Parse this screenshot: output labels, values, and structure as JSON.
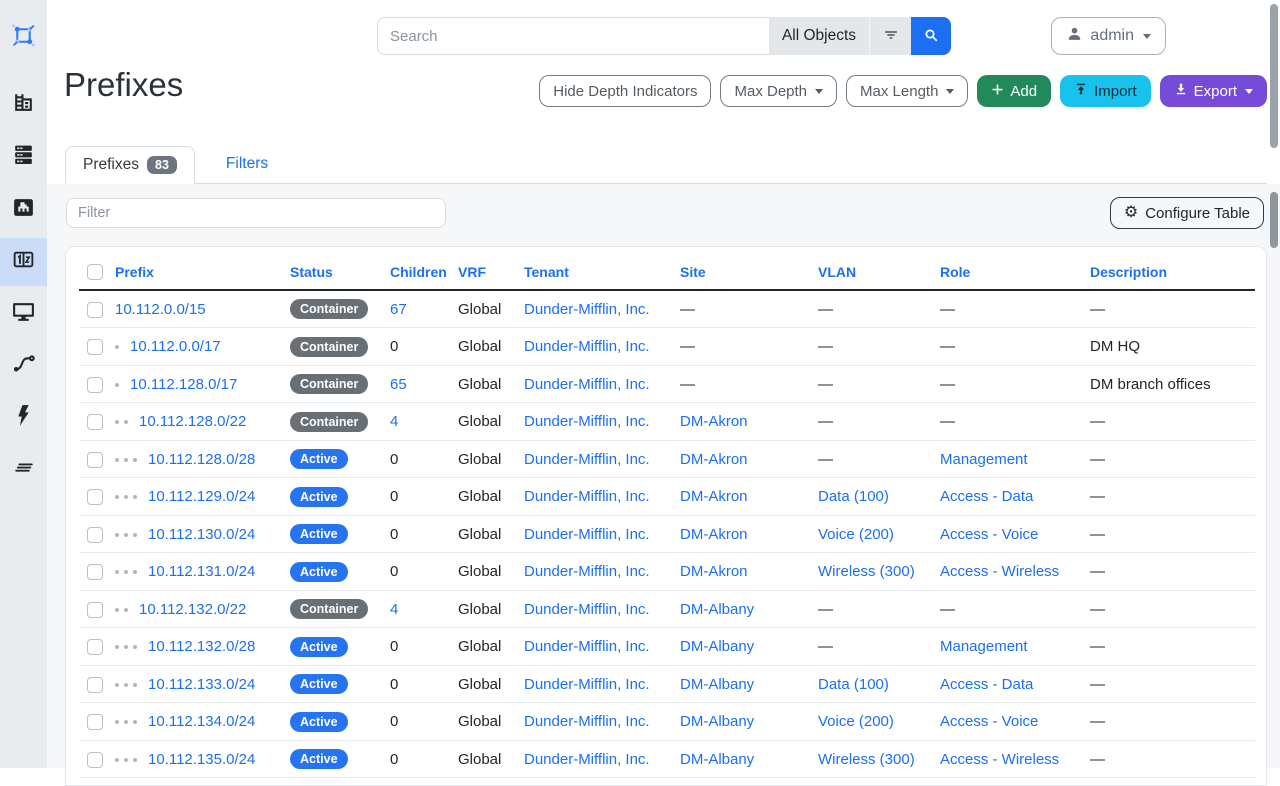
{
  "topbar": {
    "search_placeholder": "Search",
    "scope_button": "All Objects"
  },
  "account": {
    "username": "admin"
  },
  "page": {
    "title": "Prefixes"
  },
  "toolbar": {
    "hide_depth_label": "Hide Depth Indicators",
    "max_depth_label": "Max Depth",
    "max_length_label": "Max Length",
    "add_label": "Add",
    "import_label": "Import",
    "export_label": "Export"
  },
  "tabs": {
    "prefixes_label": "Prefixes",
    "prefixes_count": "83",
    "filters_label": "Filters"
  },
  "table_controls": {
    "filter_placeholder": "Filter",
    "configure_label": "Configure Table"
  },
  "sidebar": {
    "items": [
      {
        "name": "netbox-logo-icon"
      },
      {
        "name": "organization-icon"
      },
      {
        "name": "devices-icon"
      },
      {
        "name": "connections-icon"
      },
      {
        "name": "ipam-icon",
        "active": true
      },
      {
        "name": "virtualization-icon"
      },
      {
        "name": "circuits-icon"
      },
      {
        "name": "power-icon"
      },
      {
        "name": "customization-icon"
      }
    ]
  },
  "colors": {
    "link_blue": "#1b6ff2",
    "badge_active": "#2674f0",
    "badge_container": "#687076",
    "btn_add_green": "#218a5b",
    "btn_import_cyan": "#17c2ec",
    "btn_export_purple": "#764bd8",
    "sidebar_bg": "#e9ecef",
    "sidebar_active_bg": "#cbdcf9",
    "content_bg": "#f6f7f8"
  },
  "table": {
    "columns": [
      "Prefix",
      "Status",
      "Children",
      "VRF",
      "Tenant",
      "Site",
      "VLAN",
      "Role",
      "Description"
    ],
    "rows": [
      {
        "depth": 0,
        "prefix": "10.112.0.0/15",
        "status": "Container",
        "children": "67",
        "children_link": true,
        "vrf": "Global",
        "tenant": "Dunder-Mifflin, Inc.",
        "site": "—",
        "vlan": "—",
        "role": "—",
        "description": "—"
      },
      {
        "depth": 1,
        "prefix": "10.112.0.0/17",
        "status": "Container",
        "children": "0",
        "children_link": false,
        "vrf": "Global",
        "tenant": "Dunder-Mifflin, Inc.",
        "site": "—",
        "vlan": "—",
        "role": "—",
        "description": "DM HQ"
      },
      {
        "depth": 1,
        "prefix": "10.112.128.0/17",
        "status": "Container",
        "children": "65",
        "children_link": true,
        "vrf": "Global",
        "tenant": "Dunder-Mifflin, Inc.",
        "site": "—",
        "vlan": "—",
        "role": "—",
        "description": "DM branch offices"
      },
      {
        "depth": 2,
        "prefix": "10.112.128.0/22",
        "status": "Container",
        "children": "4",
        "children_link": true,
        "vrf": "Global",
        "tenant": "Dunder-Mifflin, Inc.",
        "site": "DM-Akron",
        "vlan": "—",
        "role": "—",
        "description": "—"
      },
      {
        "depth": 3,
        "prefix": "10.112.128.0/28",
        "status": "Active",
        "children": "0",
        "children_link": false,
        "vrf": "Global",
        "tenant": "Dunder-Mifflin, Inc.",
        "site": "DM-Akron",
        "vlan": "—",
        "role": "Management",
        "description": "—"
      },
      {
        "depth": 3,
        "prefix": "10.112.129.0/24",
        "status": "Active",
        "children": "0",
        "children_link": false,
        "vrf": "Global",
        "tenant": "Dunder-Mifflin, Inc.",
        "site": "DM-Akron",
        "vlan": "Data (100)",
        "role": "Access - Data",
        "description": "—"
      },
      {
        "depth": 3,
        "prefix": "10.112.130.0/24",
        "status": "Active",
        "children": "0",
        "children_link": false,
        "vrf": "Global",
        "tenant": "Dunder-Mifflin, Inc.",
        "site": "DM-Akron",
        "vlan": "Voice (200)",
        "role": "Access - Voice",
        "description": "—"
      },
      {
        "depth": 3,
        "prefix": "10.112.131.0/24",
        "status": "Active",
        "children": "0",
        "children_link": false,
        "vrf": "Global",
        "tenant": "Dunder-Mifflin, Inc.",
        "site": "DM-Akron",
        "vlan": "Wireless (300)",
        "role": "Access - Wireless",
        "description": "—"
      },
      {
        "depth": 2,
        "prefix": "10.112.132.0/22",
        "status": "Container",
        "children": "4",
        "children_link": true,
        "vrf": "Global",
        "tenant": "Dunder-Mifflin, Inc.",
        "site": "DM-Albany",
        "vlan": "—",
        "role": "—",
        "description": "—"
      },
      {
        "depth": 3,
        "prefix": "10.112.132.0/28",
        "status": "Active",
        "children": "0",
        "children_link": false,
        "vrf": "Global",
        "tenant": "Dunder-Mifflin, Inc.",
        "site": "DM-Albany",
        "vlan": "—",
        "role": "Management",
        "description": "—"
      },
      {
        "depth": 3,
        "prefix": "10.112.133.0/24",
        "status": "Active",
        "children": "0",
        "children_link": false,
        "vrf": "Global",
        "tenant": "Dunder-Mifflin, Inc.",
        "site": "DM-Albany",
        "vlan": "Data (100)",
        "role": "Access - Data",
        "description": "—"
      },
      {
        "depth": 3,
        "prefix": "10.112.134.0/24",
        "status": "Active",
        "children": "0",
        "children_link": false,
        "vrf": "Global",
        "tenant": "Dunder-Mifflin, Inc.",
        "site": "DM-Albany",
        "vlan": "Voice (200)",
        "role": "Access - Voice",
        "description": "—"
      },
      {
        "depth": 3,
        "prefix": "10.112.135.0/24",
        "status": "Active",
        "children": "0",
        "children_link": false,
        "vrf": "Global",
        "tenant": "Dunder-Mifflin, Inc.",
        "site": "DM-Albany",
        "vlan": "Wireless (300)",
        "role": "Access - Wireless",
        "description": "—"
      }
    ]
  }
}
